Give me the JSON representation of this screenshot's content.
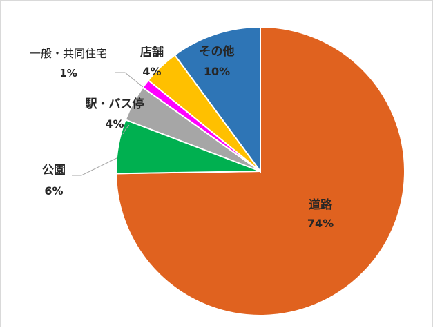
{
  "chart_data": {
    "type": "pie",
    "title": "",
    "legend": "none",
    "slices": [
      {
        "category": "道路",
        "value": 74,
        "label": "74%",
        "color": "#E0621F"
      },
      {
        "category": "公園",
        "value": 6,
        "label": "6%",
        "color": "#00B050"
      },
      {
        "category": "駅・バス停",
        "value": 4,
        "label": "4%",
        "color": "#A6A6A6"
      },
      {
        "category": "一般・共同住宅",
        "value": 1,
        "label": "1%",
        "color": "#FF00FF"
      },
      {
        "category": "店舗",
        "value": 4,
        "label": "4%",
        "color": "#FFC000"
      },
      {
        "category": "その他",
        "value": 10,
        "label": "10%",
        "color": "#2E75B6"
      }
    ]
  }
}
